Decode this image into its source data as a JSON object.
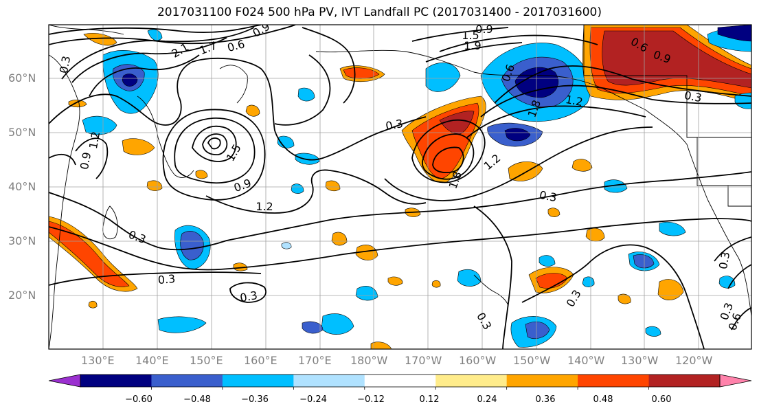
{
  "title": "2017031100 F024 500 hPa PV, IVT Landfall PC (2017031400 - 2017031600)",
  "lat_labels": [
    "60°N",
    "50°N",
    "40°N",
    "30°N",
    "20°N"
  ],
  "lon_labels": [
    "130°E",
    "140°E",
    "150°E",
    "160°E",
    "170°E",
    "180°W",
    "170°W",
    "160°W",
    "150°W",
    "140°W",
    "130°W",
    "120°W"
  ],
  "contour_labels": [
    "0.3",
    "2.1",
    "1.7",
    "0.6",
    "0.9",
    "1.5",
    "1.9",
    "0.9",
    "0.3",
    "1.5",
    "0.9",
    "1.2",
    "0.3",
    "0.9",
    "1.2",
    "0.3",
    "1.8",
    "1.2",
    "0.3",
    "0.6",
    "0.9",
    "0.3",
    "0.6",
    "0.3",
    "0.3",
    "0.3",
    "0.6",
    "1.2",
    "0.3",
    "0.3",
    "1.8"
  ],
  "colorbar": {
    "ticks": [
      "−0.60",
      "−0.48",
      "−0.36",
      "−0.24",
      "−0.12",
      "0.12",
      "0.24",
      "0.36",
      "0.48",
      "0.60"
    ],
    "colors": [
      "#9b30d0",
      "#000080",
      "#3a5fcd",
      "#00bfff",
      "#b0e2ff",
      "#ffffff",
      "#ffec8b",
      "#ffa500",
      "#ff4500",
      "#b22222",
      "#ff82ab"
    ]
  }
}
